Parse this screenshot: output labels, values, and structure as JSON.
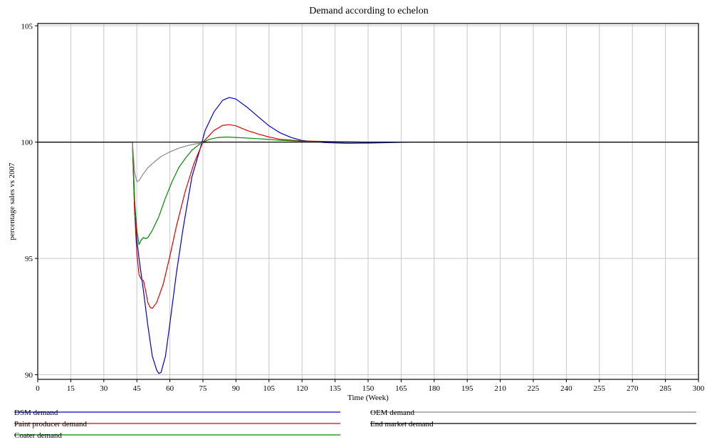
{
  "chart_data": {
    "type": "line",
    "title": "Demand according to echelon",
    "xlabel": "Time (Week)",
    "ylabel": "percentage sales vs 2007",
    "xlim": [
      0,
      300
    ],
    "ylim": [
      89.8,
      105.1
    ],
    "x_ticks": [
      0,
      15,
      30,
      45,
      60,
      75,
      90,
      105,
      120,
      135,
      150,
      165,
      180,
      195,
      210,
      225,
      240,
      255,
      270,
      285,
      300
    ],
    "y_ticks": [
      90,
      95,
      100,
      105
    ],
    "grid": true,
    "legend_position": "bottom",
    "series": [
      {
        "name": "DSM demand",
        "color": "#0000cc",
        "points": [
          [
            0,
            100
          ],
          [
            43,
            100
          ],
          [
            44,
            97
          ],
          [
            45,
            95.8
          ],
          [
            46,
            95
          ],
          [
            48,
            93.6
          ],
          [
            50,
            92.1
          ],
          [
            52,
            90.8
          ],
          [
            54,
            90.2
          ],
          [
            55,
            90.05
          ],
          [
            56,
            90.1
          ],
          [
            58,
            90.8
          ],
          [
            60,
            92.2
          ],
          [
            63,
            94.4
          ],
          [
            66,
            96.3
          ],
          [
            70,
            98.5
          ],
          [
            74,
            99.8
          ],
          [
            76,
            100.5
          ],
          [
            80,
            101.3
          ],
          [
            84,
            101.8
          ],
          [
            87,
            101.92
          ],
          [
            90,
            101.85
          ],
          [
            95,
            101.5
          ],
          [
            100,
            101.1
          ],
          [
            105,
            100.7
          ],
          [
            110,
            100.4
          ],
          [
            115,
            100.2
          ],
          [
            120,
            100.07
          ],
          [
            130,
            99.98
          ],
          [
            140,
            99.95
          ],
          [
            150,
            99.96
          ],
          [
            165,
            99.99
          ],
          [
            180,
            100
          ],
          [
            300,
            100
          ]
        ]
      },
      {
        "name": "Paint producer demand",
        "color": "#dd0000",
        "points": [
          [
            0,
            100
          ],
          [
            43,
            100
          ],
          [
            44,
            97
          ],
          [
            45,
            95.2
          ],
          [
            46,
            94.3
          ],
          [
            47,
            94.1
          ],
          [
            48,
            94.05
          ],
          [
            49,
            93.6
          ],
          [
            50,
            93.1
          ],
          [
            51,
            92.9
          ],
          [
            52,
            92.85
          ],
          [
            54,
            93.1
          ],
          [
            57,
            93.9
          ],
          [
            60,
            95.1
          ],
          [
            63,
            96.4
          ],
          [
            67,
            97.9
          ],
          [
            71,
            99.1
          ],
          [
            75,
            100
          ],
          [
            80,
            100.5
          ],
          [
            84,
            100.72
          ],
          [
            87,
            100.75
          ],
          [
            90,
            100.7
          ],
          [
            95,
            100.5
          ],
          [
            100,
            100.35
          ],
          [
            105,
            100.22
          ],
          [
            110,
            100.12
          ],
          [
            120,
            100.05
          ],
          [
            135,
            100.02
          ],
          [
            150,
            100
          ],
          [
            300,
            100
          ]
        ]
      },
      {
        "name": "Coater demand",
        "color": "#008800",
        "points": [
          [
            0,
            100
          ],
          [
            43,
            100
          ],
          [
            44,
            97.5
          ],
          [
            45,
            96.2
          ],
          [
            46,
            95.6
          ],
          [
            47,
            95.8
          ],
          [
            48,
            95.9
          ],
          [
            49,
            95.85
          ],
          [
            50,
            95.9
          ],
          [
            52,
            96.2
          ],
          [
            55,
            96.8
          ],
          [
            58,
            97.6
          ],
          [
            61,
            98.3
          ],
          [
            64,
            98.9
          ],
          [
            67,
            99.3
          ],
          [
            70,
            99.65
          ],
          [
            74,
            99.95
          ],
          [
            78,
            100.12
          ],
          [
            82,
            100.2
          ],
          [
            86,
            100.22
          ],
          [
            90,
            100.2
          ],
          [
            100,
            100.15
          ],
          [
            110,
            100.08
          ],
          [
            120,
            100.04
          ],
          [
            135,
            100.01
          ],
          [
            150,
            100
          ],
          [
            300,
            100
          ]
        ]
      },
      {
        "name": "OEM demand",
        "color": "#888888",
        "points": [
          [
            0,
            100
          ],
          [
            43,
            100
          ],
          [
            44,
            98.7
          ],
          [
            45,
            98.3
          ],
          [
            46,
            98.35
          ],
          [
            48,
            98.65
          ],
          [
            50,
            98.9
          ],
          [
            53,
            99.15
          ],
          [
            56,
            99.38
          ],
          [
            60,
            99.58
          ],
          [
            64,
            99.74
          ],
          [
            68,
            99.85
          ],
          [
            72,
            99.93
          ],
          [
            76,
            99.98
          ],
          [
            80,
            100
          ],
          [
            300,
            100
          ]
        ]
      },
      {
        "name": "End market demand",
        "color": "#000000",
        "points": [
          [
            0,
            100
          ],
          [
            300,
            100
          ]
        ]
      }
    ]
  }
}
